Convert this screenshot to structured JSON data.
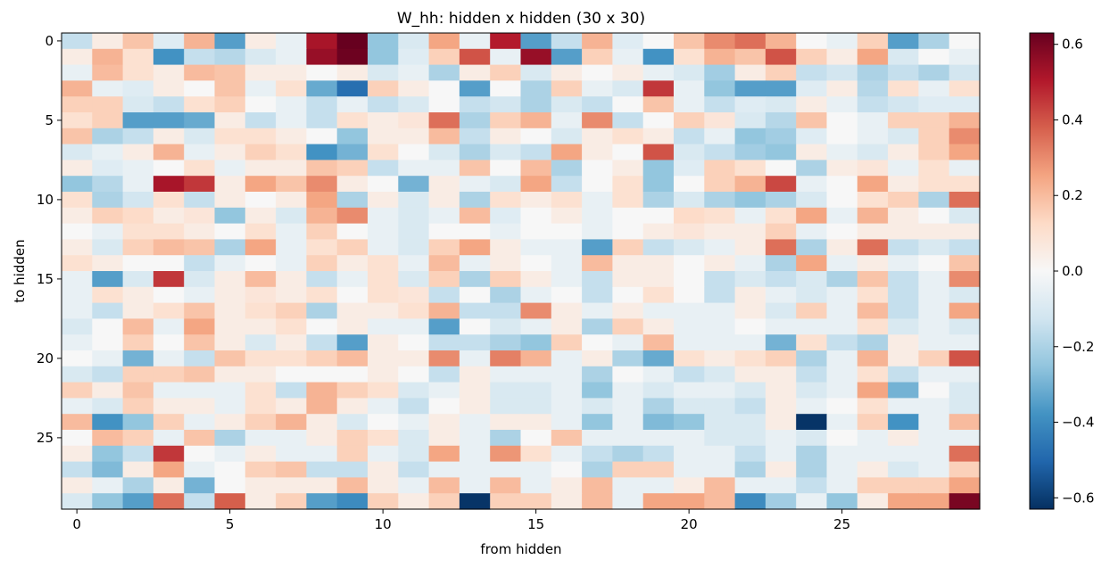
{
  "chart_data": {
    "type": "heatmap",
    "title": "W_hh: hidden x hidden (30 x 30)",
    "xlabel": "from hidden",
    "ylabel": "to hidden",
    "rows": 30,
    "cols": 30,
    "x_ticks": [
      0,
      5,
      10,
      15,
      20,
      25
    ],
    "y_ticks": [
      0,
      5,
      10,
      15,
      20,
      25
    ],
    "colorbar": {
      "colormap": "RdBu_r",
      "vmin": -0.63,
      "vmax": 0.63,
      "ticks": [
        -0.6,
        -0.4,
        -0.2,
        0.0,
        0.2,
        0.4,
        0.6
      ],
      "tick_labels": [
        "−0.6",
        "−0.4",
        "−0.2",
        "0.0",
        "0.2",
        "0.4",
        "0.6"
      ]
    },
    "values": [
      [
        -0.15,
        0.05,
        0.18,
        -0.08,
        0.22,
        -0.35,
        0.05,
        -0.05,
        0.52,
        0.63,
        -0.25,
        -0.1,
        0.25,
        -0.05,
        0.5,
        -0.35,
        -0.15,
        0.22,
        -0.08,
        0.0,
        0.18,
        0.3,
        0.35,
        0.22,
        0.0,
        -0.05,
        0.15,
        -0.35,
        -0.2,
        0.0
      ],
      [
        0.05,
        0.22,
        0.1,
        -0.38,
        -0.15,
        -0.18,
        -0.1,
        -0.05,
        0.55,
        0.62,
        -0.25,
        -0.08,
        0.15,
        0.4,
        -0.05,
        0.55,
        -0.35,
        0.15,
        -0.05,
        -0.38,
        0.1,
        0.22,
        0.18,
        0.4,
        0.15,
        0.05,
        0.25,
        -0.1,
        0.0,
        -0.05
      ],
      [
        -0.05,
        0.2,
        0.1,
        0.05,
        0.2,
        0.18,
        0.05,
        0.05,
        0.0,
        0.05,
        -0.1,
        -0.05,
        -0.2,
        0.05,
        0.15,
        -0.1,
        0.05,
        0.0,
        0.05,
        -0.05,
        -0.1,
        -0.22,
        0.05,
        0.15,
        -0.15,
        -0.12,
        -0.2,
        -0.15,
        -0.2,
        -0.12
      ],
      [
        0.22,
        -0.05,
        -0.08,
        0.05,
        0.0,
        0.18,
        -0.05,
        0.1,
        -0.32,
        -0.48,
        0.15,
        0.05,
        0.0,
        -0.35,
        0.0,
        -0.2,
        0.15,
        -0.05,
        -0.1,
        0.45,
        -0.05,
        -0.25,
        -0.35,
        -0.35,
        -0.08,
        0.05,
        -0.18,
        0.1,
        -0.05,
        0.1
      ],
      [
        0.15,
        0.15,
        -0.1,
        -0.15,
        0.1,
        0.15,
        0.0,
        -0.05,
        -0.15,
        -0.05,
        -0.15,
        -0.1,
        0.0,
        -0.15,
        -0.12,
        -0.2,
        -0.1,
        -0.15,
        0.0,
        0.18,
        -0.05,
        -0.15,
        -0.08,
        -0.1,
        0.05,
        -0.05,
        -0.15,
        -0.12,
        -0.08,
        -0.08
      ],
      [
        0.1,
        0.15,
        -0.35,
        -0.35,
        -0.32,
        0.05,
        -0.15,
        -0.05,
        -0.15,
        0.1,
        0.05,
        0.08,
        0.35,
        -0.2,
        0.15,
        0.22,
        -0.05,
        0.3,
        -0.15,
        0.0,
        0.15,
        0.08,
        -0.1,
        -0.18,
        0.18,
        0.0,
        -0.05,
        0.15,
        0.15,
        0.22
      ],
      [
        0.18,
        -0.2,
        -0.15,
        0.05,
        -0.1,
        0.1,
        0.1,
        0.05,
        0.0,
        -0.25,
        0.05,
        0.05,
        0.2,
        -0.15,
        0.05,
        0.0,
        -0.1,
        0.05,
        0.1,
        0.05,
        -0.15,
        -0.05,
        -0.25,
        -0.22,
        -0.08,
        0.0,
        -0.05,
        -0.1,
        0.15,
        0.3
      ],
      [
        -0.1,
        -0.05,
        0.05,
        0.22,
        -0.05,
        0.05,
        0.15,
        0.1,
        -0.38,
        -0.3,
        0.1,
        0.0,
        -0.1,
        -0.2,
        -0.1,
        -0.15,
        0.25,
        0.05,
        0.0,
        0.4,
        -0.1,
        -0.15,
        -0.22,
        -0.25,
        0.05,
        -0.05,
        -0.1,
        0.05,
        0.15,
        0.25
      ],
      [
        0.05,
        -0.08,
        -0.05,
        0.0,
        0.1,
        -0.05,
        0.05,
        0.05,
        0.18,
        0.15,
        -0.15,
        -0.05,
        -0.05,
        0.18,
        0.0,
        0.2,
        -0.2,
        0.0,
        0.05,
        -0.25,
        -0.08,
        0.15,
        0.1,
        0.0,
        -0.2,
        0.05,
        0.08,
        -0.05,
        0.1,
        -0.05
      ],
      [
        -0.25,
        -0.18,
        -0.05,
        0.52,
        0.45,
        0.05,
        0.25,
        0.18,
        0.3,
        0.05,
        0.0,
        -0.3,
        0.05,
        -0.05,
        -0.1,
        0.25,
        -0.15,
        0.0,
        0.1,
        -0.25,
        0.0,
        0.15,
        0.22,
        0.42,
        -0.05,
        0.0,
        0.25,
        0.05,
        0.1,
        0.1
      ],
      [
        0.1,
        -0.2,
        -0.12,
        0.1,
        -0.15,
        0.05,
        0.0,
        0.05,
        0.25,
        -0.2,
        0.05,
        -0.1,
        0.05,
        -0.2,
        0.1,
        0.05,
        0.1,
        -0.05,
        0.1,
        -0.2,
        -0.1,
        -0.2,
        -0.25,
        -0.2,
        -0.1,
        0.0,
        0.1,
        0.15,
        -0.2,
        0.35
      ],
      [
        0.05,
        0.15,
        0.12,
        0.05,
        0.08,
        -0.25,
        0.05,
        -0.1,
        0.22,
        0.3,
        -0.05,
        -0.1,
        -0.05,
        0.2,
        -0.08,
        0.0,
        0.05,
        -0.05,
        0.0,
        0.0,
        0.12,
        0.1,
        -0.05,
        0.1,
        0.25,
        -0.05,
        0.22,
        0.05,
        0.0,
        -0.1
      ],
      [
        0.0,
        -0.05,
        0.1,
        0.1,
        0.05,
        0.0,
        0.1,
        -0.05,
        0.15,
        0.0,
        -0.05,
        -0.1,
        0.0,
        0.0,
        -0.05,
        0.0,
        0.0,
        -0.05,
        0.0,
        0.05,
        0.08,
        0.05,
        0.05,
        0.15,
        -0.05,
        0.0,
        0.05,
        0.05,
        0.05,
        0.05
      ],
      [
        0.05,
        -0.1,
        0.15,
        0.2,
        0.18,
        -0.2,
        0.25,
        -0.05,
        0.1,
        0.15,
        -0.05,
        -0.1,
        0.15,
        0.25,
        0.05,
        -0.05,
        -0.05,
        -0.35,
        0.15,
        -0.15,
        -0.1,
        -0.05,
        0.05,
        0.35,
        -0.2,
        0.05,
        0.35,
        -0.15,
        -0.1,
        -0.15
      ],
      [
        0.1,
        0.05,
        0.0,
        0.0,
        -0.15,
        -0.05,
        0.0,
        -0.05,
        0.15,
        0.05,
        0.1,
        -0.05,
        0.2,
        -0.05,
        0.05,
        0.0,
        -0.05,
        0.2,
        0.05,
        0.05,
        0.0,
        0.05,
        -0.05,
        -0.2,
        0.25,
        -0.05,
        0.05,
        -0.05,
        0.0,
        0.18
      ],
      [
        -0.05,
        -0.35,
        -0.1,
        0.45,
        -0.1,
        0.05,
        0.2,
        0.05,
        -0.15,
        -0.05,
        0.1,
        -0.1,
        0.15,
        -0.2,
        0.15,
        0.05,
        -0.05,
        -0.15,
        0.05,
        0.05,
        0.0,
        -0.15,
        -0.1,
        -0.15,
        -0.1,
        -0.2,
        0.18,
        -0.15,
        -0.05,
        0.3
      ],
      [
        -0.05,
        0.1,
        0.05,
        0.0,
        -0.05,
        0.05,
        0.08,
        0.05,
        0.1,
        0.0,
        0.1,
        0.08,
        -0.15,
        0.0,
        -0.2,
        -0.05,
        0.0,
        -0.15,
        0.0,
        0.1,
        0.0,
        -0.15,
        0.05,
        -0.05,
        -0.1,
        -0.05,
        0.1,
        -0.15,
        -0.05,
        -0.1
      ],
      [
        -0.05,
        -0.15,
        0.05,
        0.1,
        0.18,
        0.05,
        0.1,
        0.15,
        -0.2,
        0.05,
        0.05,
        0.1,
        0.22,
        -0.15,
        -0.15,
        0.3,
        0.05,
        -0.05,
        0.05,
        -0.05,
        -0.05,
        -0.05,
        0.05,
        -0.1,
        0.15,
        -0.05,
        0.2,
        -0.15,
        -0.05,
        0.25
      ],
      [
        -0.1,
        0.0,
        0.2,
        -0.05,
        0.25,
        0.05,
        0.05,
        0.1,
        0.0,
        0.05,
        -0.05,
        -0.05,
        -0.35,
        0.0,
        -0.1,
        -0.05,
        0.05,
        -0.2,
        0.15,
        0.05,
        -0.05,
        -0.05,
        0.0,
        -0.05,
        -0.05,
        -0.05,
        0.1,
        -0.1,
        -0.05,
        -0.1
      ],
      [
        -0.05,
        0.0,
        0.15,
        0.0,
        0.18,
        0.05,
        -0.1,
        0.05,
        -0.15,
        -0.35,
        0.05,
        0.0,
        -0.15,
        -0.15,
        -0.2,
        -0.25,
        0.15,
        0.0,
        -0.05,
        0.2,
        -0.05,
        -0.05,
        -0.05,
        -0.3,
        0.1,
        -0.15,
        -0.2,
        0.05,
        -0.05,
        -0.05
      ],
      [
        0.0,
        -0.05,
        -0.3,
        -0.05,
        -0.15,
        0.18,
        0.1,
        0.1,
        0.15,
        0.2,
        0.05,
        0.05,
        0.3,
        -0.05,
        0.32,
        0.22,
        -0.05,
        0.05,
        -0.2,
        -0.32,
        0.1,
        0.05,
        0.1,
        0.15,
        -0.2,
        -0.05,
        0.22,
        0.05,
        0.15,
        0.4
      ],
      [
        -0.1,
        -0.15,
        0.15,
        0.15,
        0.18,
        0.05,
        0.05,
        0.0,
        0.0,
        0.0,
        0.05,
        0.0,
        -0.15,
        0.05,
        -0.05,
        -0.05,
        -0.05,
        -0.2,
        0.0,
        -0.05,
        -0.15,
        -0.1,
        0.05,
        0.05,
        -0.15,
        -0.05,
        0.1,
        -0.15,
        -0.05,
        -0.05
      ],
      [
        0.15,
        0.05,
        0.18,
        -0.05,
        -0.05,
        -0.05,
        0.1,
        -0.15,
        0.22,
        0.15,
        0.1,
        -0.1,
        -0.05,
        0.05,
        -0.1,
        -0.1,
        -0.05,
        -0.25,
        -0.05,
        -0.1,
        -0.05,
        -0.05,
        -0.1,
        0.05,
        -0.1,
        -0.05,
        0.25,
        -0.3,
        0.0,
        -0.1
      ],
      [
        -0.05,
        -0.1,
        0.15,
        0.05,
        0.05,
        -0.05,
        0.1,
        0.05,
        0.22,
        0.05,
        -0.05,
        -0.15,
        0.0,
        0.05,
        -0.1,
        -0.1,
        -0.05,
        -0.1,
        -0.05,
        -0.2,
        -0.1,
        -0.1,
        -0.15,
        0.05,
        -0.05,
        0.0,
        0.1,
        -0.05,
        -0.05,
        -0.1
      ],
      [
        0.2,
        -0.38,
        -0.25,
        0.15,
        -0.05,
        0.05,
        0.15,
        0.22,
        0.05,
        -0.1,
        0.0,
        -0.05,
        0.05,
        -0.05,
        0.05,
        0.05,
        -0.05,
        -0.25,
        -0.05,
        -0.28,
        -0.25,
        -0.1,
        -0.1,
        0.05,
        -0.62,
        -0.05,
        0.15,
        -0.38,
        -0.05,
        0.2
      ],
      [
        0.0,
        0.2,
        0.15,
        -0.05,
        0.18,
        -0.2,
        -0.05,
        -0.05,
        0.05,
        0.15,
        0.1,
        -0.1,
        0.05,
        -0.05,
        -0.2,
        0.0,
        0.18,
        -0.05,
        -0.05,
        -0.05,
        -0.05,
        -0.1,
        -0.1,
        -0.05,
        -0.1,
        0.0,
        -0.05,
        0.05,
        -0.05,
        -0.05
      ],
      [
        0.05,
        -0.25,
        -0.15,
        0.45,
        0.0,
        -0.05,
        0.05,
        -0.05,
        -0.05,
        0.15,
        -0.05,
        -0.1,
        0.25,
        -0.05,
        0.28,
        0.1,
        -0.05,
        -0.15,
        -0.2,
        -0.15,
        -0.05,
        -0.05,
        -0.15,
        -0.05,
        -0.2,
        -0.05,
        -0.05,
        -0.05,
        -0.05,
        0.35
      ],
      [
        -0.15,
        -0.28,
        0.05,
        0.25,
        -0.05,
        0.0,
        0.15,
        0.18,
        -0.15,
        -0.15,
        0.05,
        -0.15,
        -0.05,
        -0.05,
        -0.05,
        -0.05,
        0.0,
        -0.2,
        0.15,
        0.15,
        -0.05,
        -0.05,
        -0.2,
        0.05,
        -0.2,
        -0.05,
        0.05,
        -0.1,
        -0.05,
        0.15
      ],
      [
        0.05,
        -0.05,
        -0.2,
        0.05,
        -0.3,
        0.0,
        0.05,
        0.05,
        0.05,
        0.2,
        0.05,
        -0.05,
        0.2,
        -0.05,
        0.2,
        -0.05,
        0.05,
        0.2,
        -0.05,
        -0.05,
        0.05,
        0.2,
        -0.05,
        -0.05,
        -0.15,
        -0.05,
        0.15,
        0.15,
        0.15,
        0.25
      ],
      [
        -0.1,
        -0.25,
        -0.35,
        0.35,
        -0.15,
        0.38,
        0.05,
        0.15,
        -0.35,
        -0.4,
        0.15,
        0.05,
        0.15,
        -0.62,
        0.15,
        0.15,
        0.05,
        0.2,
        -0.05,
        0.25,
        0.25,
        0.2,
        -0.4,
        -0.22,
        -0.05,
        -0.25,
        0.05,
        0.25,
        0.25,
        0.6
      ]
    ]
  }
}
